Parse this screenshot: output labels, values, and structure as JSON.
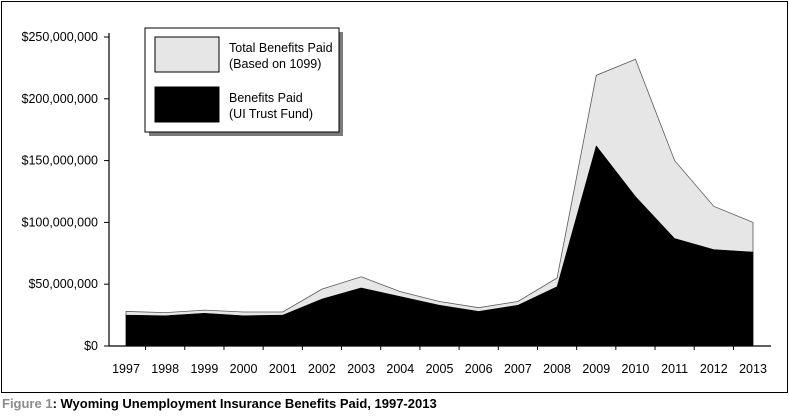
{
  "chart_data": {
    "type": "area",
    "x": [
      "1997",
      "1998",
      "1999",
      "2000",
      "2001",
      "2002",
      "2003",
      "2004",
      "2005",
      "2006",
      "2007",
      "2008",
      "2009",
      "2010",
      "2011",
      "2012",
      "2013"
    ],
    "series": [
      {
        "name": "Total Benefits Paid (Based on 1099)",
        "color": "#e6e6e6",
        "values": [
          28000000,
          27000000,
          29000000,
          27500000,
          27500000,
          46000000,
          56000000,
          44000000,
          36000000,
          31000000,
          36000000,
          55000000,
          219000000,
          232000000,
          150000000,
          113000000,
          100000000
        ]
      },
      {
        "name": "Benefits Paid (UI Trust Fund)",
        "color": "#000000",
        "values": [
          25000000,
          24500000,
          26500000,
          24500000,
          25000000,
          38000000,
          47000000,
          40000000,
          33000000,
          28000000,
          33000000,
          48000000,
          162000000,
          121000000,
          87000000,
          78000000,
          76000000
        ]
      }
    ],
    "yticks": [
      "$0",
      "$50,000,000",
      "$100,000,000",
      "$150,000,000",
      "$200,000,000",
      "$250,000,000"
    ],
    "ytick_values": [
      0,
      50000000,
      100000000,
      150000000,
      200000000,
      250000000
    ],
    "ylim": [
      0,
      250000000
    ],
    "legend": {
      "placement": "top-left",
      "entries": [
        {
          "line1": "Total Benefits Paid",
          "line2": "(Based on 1099)",
          "color": "#e6e6e6"
        },
        {
          "line1": "Benefits Paid",
          "line2": "(UI Trust Fund)",
          "color": "#000000"
        }
      ]
    },
    "grid": false
  },
  "caption": {
    "label": "Figure 1",
    "text": ": Wyoming Unemployment Insurance Benefits Paid, 1997-2013"
  }
}
